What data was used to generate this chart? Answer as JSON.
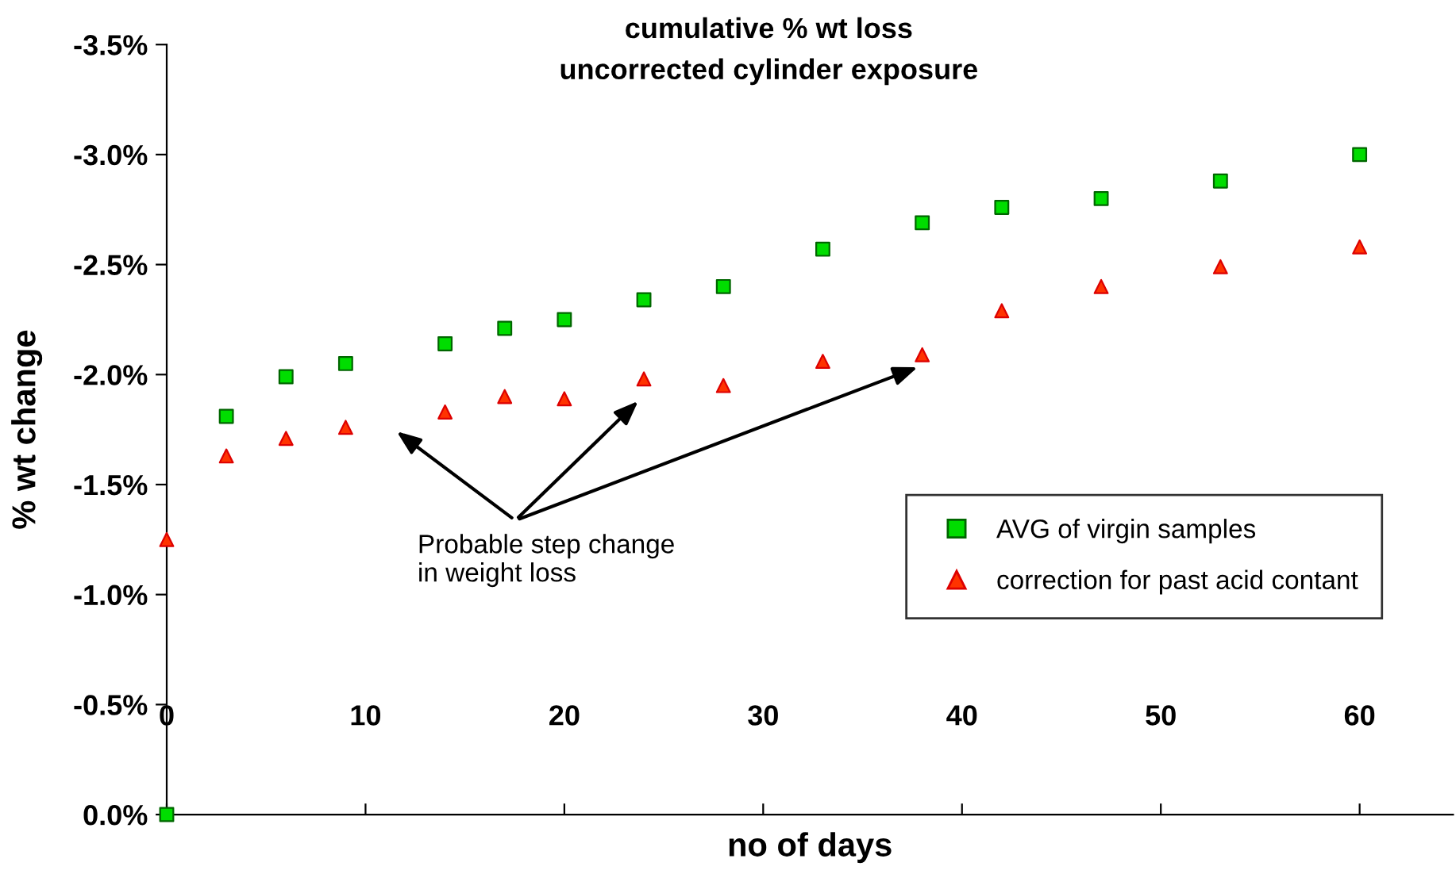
{
  "chart_data": {
    "type": "scatter",
    "title": "cumulative % wt loss",
    "subtitle": "uncorrected cylinder exposure",
    "xlabel": "no of days",
    "ylabel": "% wt change",
    "annotations": [
      "Probable step change\nin weight loss"
    ],
    "x": [
      0,
      3,
      6,
      9,
      14,
      17,
      20,
      24,
      28,
      33,
      38,
      42,
      47,
      53,
      60
    ],
    "series": [
      {
        "name": "AVG of virgin samples",
        "color": "#00dd00",
        "marker": "square",
        "values": [
          0.0,
          -1.81,
          -1.99,
          -2.05,
          -2.14,
          -2.21,
          -2.25,
          -2.34,
          -2.4,
          -2.57,
          -2.69,
          -2.76,
          -2.8,
          -2.88,
          -3.0
        ]
      },
      {
        "name": "correction for past acid contant",
        "color": "#ff3300",
        "marker": "triangle",
        "values": [
          -1.25,
          -1.63,
          -1.71,
          -1.76,
          -1.83,
          -1.9,
          -1.89,
          -1.98,
          -1.95,
          -2.06,
          -2.09,
          -2.29,
          -2.4,
          -2.49,
          -2.58
        ]
      }
    ],
    "xlim": [
      0,
      64.7
    ],
    "xticks": [
      0,
      10,
      20,
      30,
      40,
      50,
      60
    ],
    "ylim": [
      0,
      -3.5
    ],
    "yticks": [
      {
        "value": 0,
        "label": "0.0%"
      },
      {
        "value": -0.5,
        "label": "-0.5%"
      },
      {
        "value": -1.0,
        "label": "-1.0%"
      },
      {
        "value": -1.5,
        "label": "-1.5%"
      },
      {
        "value": -2.0,
        "label": "-2.0%"
      },
      {
        "value": -2.5,
        "label": "-2.5%"
      },
      {
        "value": -3.0,
        "label": "-3.0%"
      },
      {
        "value": -3.5,
        "label": "-3.5%"
      }
    ],
    "grid": false,
    "legend": "right"
  }
}
